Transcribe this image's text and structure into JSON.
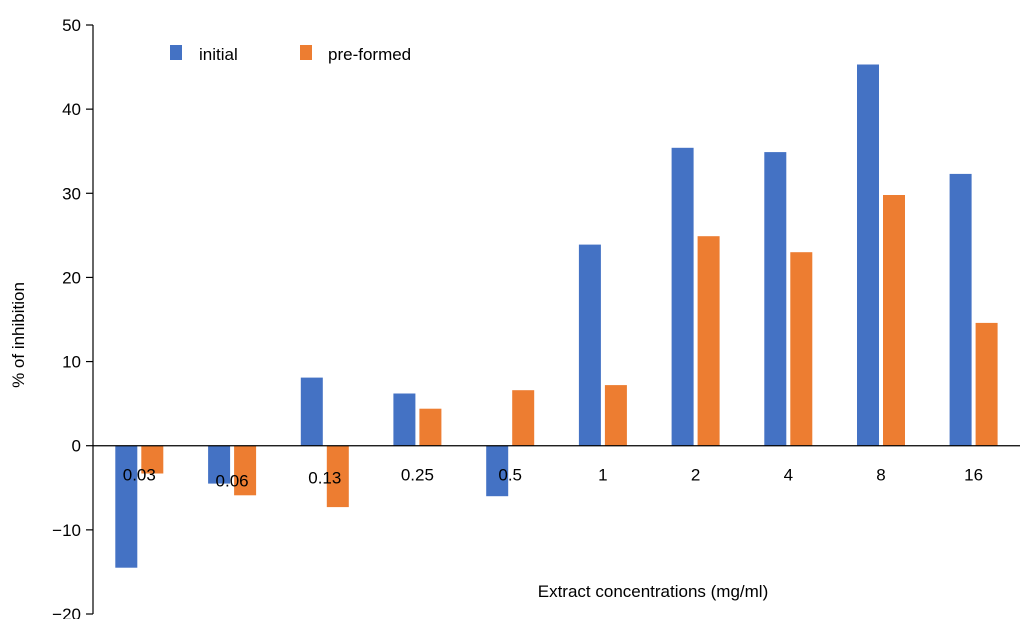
{
  "chart_data": {
    "type": "bar",
    "title": "",
    "xlabel": "Extract concentrations (mg/ml)",
    "ylabel": "% of inhibition",
    "ylim": [
      -20,
      50
    ],
    "yticks": [
      "50",
      "40",
      "30",
      "20",
      "10",
      "0",
      "−10",
      "−20"
    ],
    "yticks_values": [
      50,
      40,
      30,
      20,
      10,
      0,
      -10,
      -20
    ],
    "categories": [
      "0.03",
      "0.06",
      "0.13",
      "0.25",
      "0.5",
      "1",
      "2",
      "4",
      "8",
      "16"
    ],
    "series": [
      {
        "name": "initial",
        "color": "#4472C4",
        "values": [
          -14.5,
          -4.5,
          8.1,
          6.2,
          -6.0,
          23.9,
          35.4,
          34.9,
          45.3,
          32.3
        ]
      },
      {
        "name": "pre-formed",
        "color": "#ED7D31",
        "values": [
          -3.3,
          -5.9,
          -7.3,
          4.4,
          6.6,
          7.2,
          24.9,
          23.0,
          29.8,
          14.6
        ]
      }
    ],
    "legend_position": "top-left",
    "grid": false
  }
}
